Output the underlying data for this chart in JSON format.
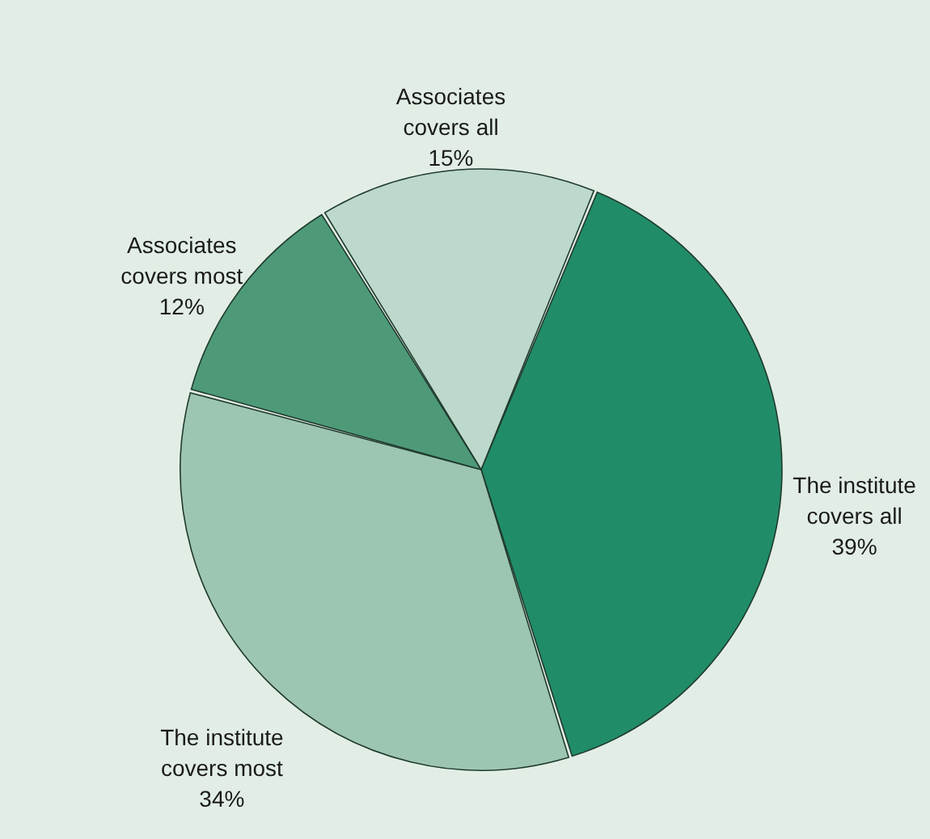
{
  "chart_data": {
    "type": "pie",
    "categories": [
      "The institute covers all",
      "The institute covers most",
      "Associates covers most",
      "Associates covers all"
    ],
    "values": [
      39,
      34,
      12,
      15
    ],
    "value_labels": [
      "39%",
      "34%",
      "12%",
      "15%"
    ],
    "colors": [
      "#218c68",
      "#9dc6b2",
      "#4e9a78",
      "#bcd9cb"
    ]
  }
}
